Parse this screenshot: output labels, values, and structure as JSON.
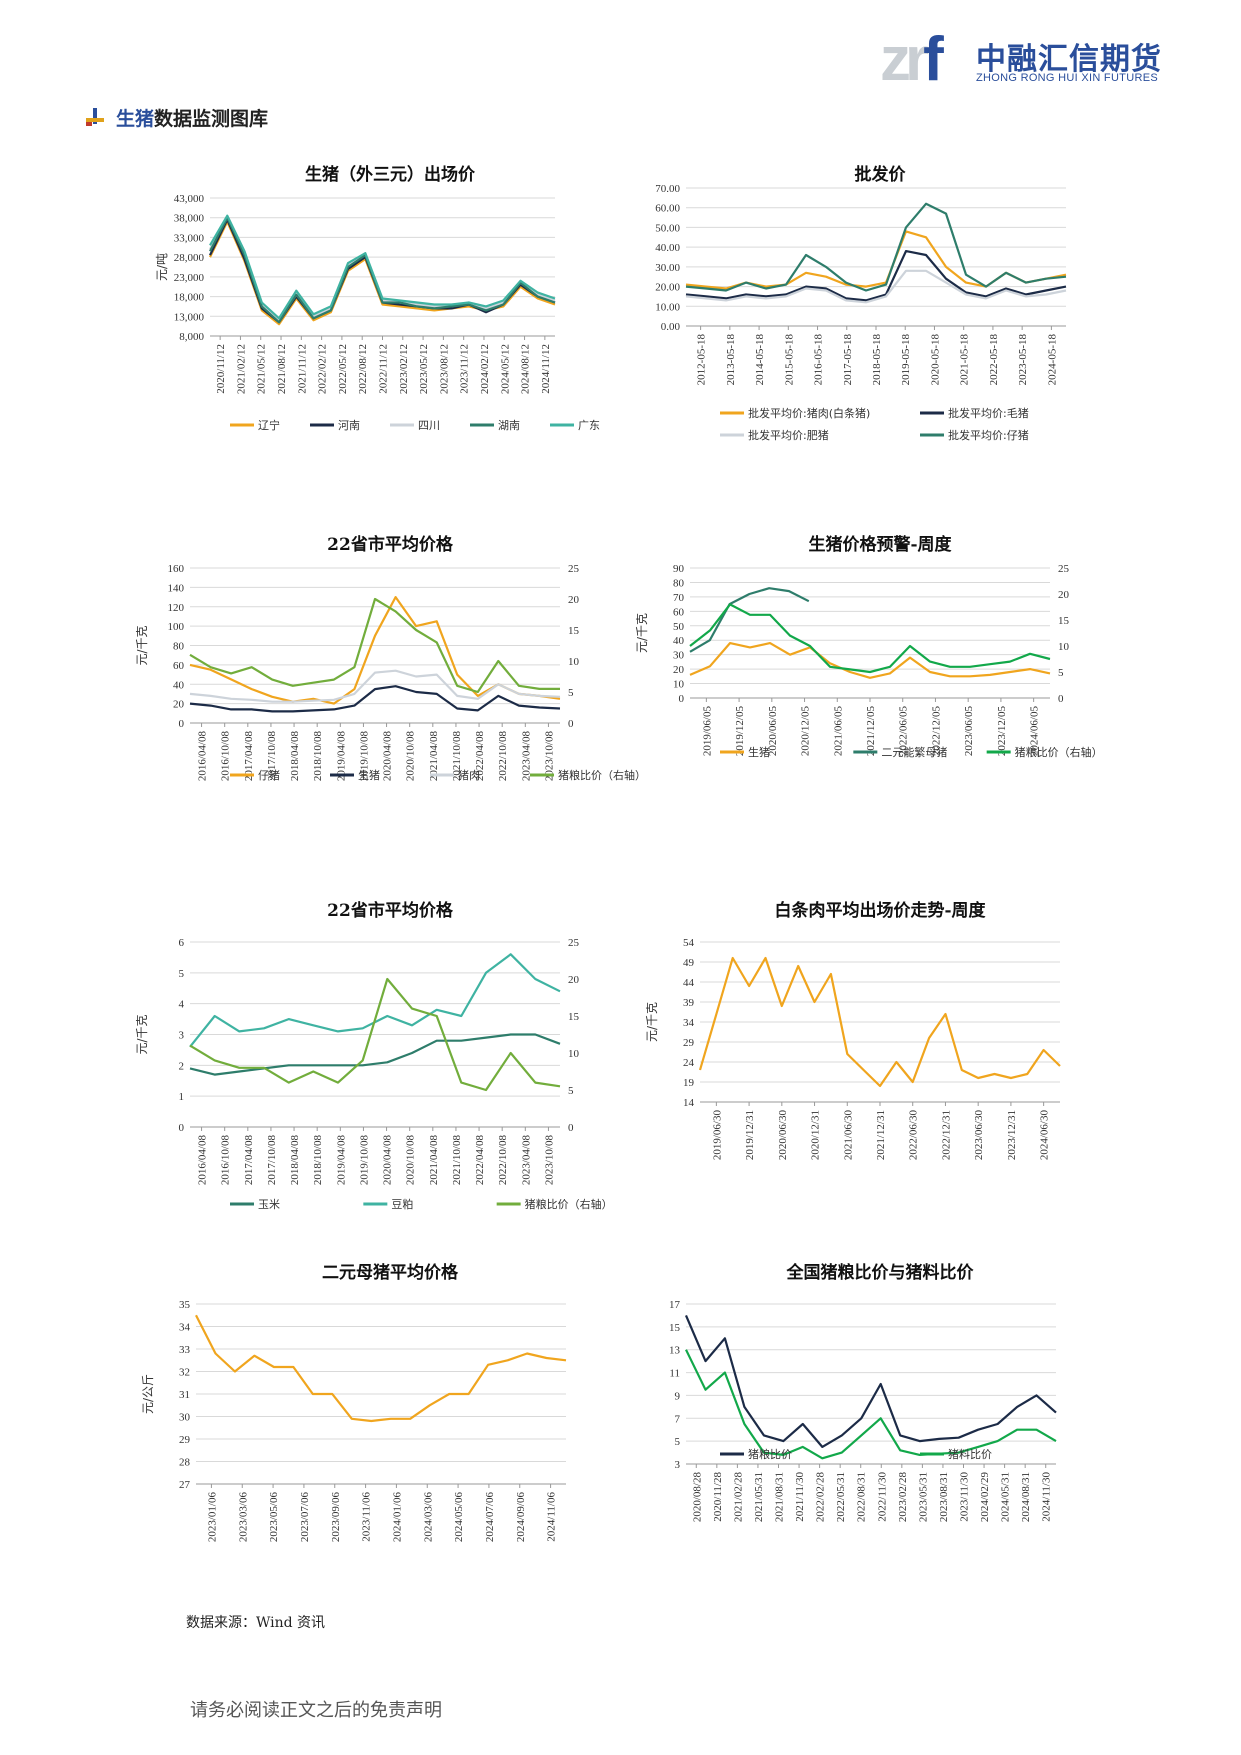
{
  "header": {
    "logo_mark": "zrf",
    "company_cn": "中融汇信期货",
    "company_en": "ZHONG RONG HUI XIN FUTURES",
    "brand_color": "#2a4e9b"
  },
  "section": {
    "title_prefix": "生猪",
    "title_rest": "数据监测图库"
  },
  "colors": {
    "orange": "#f0a51e",
    "navy": "#1c2b47",
    "lightgray": "#cdd3da",
    "teal": "#2e7d6b",
    "aqua": "#3fb3a2",
    "green": "#72ad3c",
    "brightgreen": "#12a84a"
  },
  "charts": [
    {
      "id": "c1",
      "title": "生猪（外三元）出场价",
      "ylabel": "元/吨",
      "yticks": [
        "8,000",
        "13,000",
        "18,000",
        "23,000",
        "28,000",
        "33,000",
        "38,000",
        "43,000"
      ],
      "xticks": [
        "2020/11/12",
        "2021/02/12",
        "2021/05/12",
        "2021/08/12",
        "2021/11/12",
        "2022/02/12",
        "2022/05/12",
        "2022/08/12",
        "2022/11/12",
        "2023/02/12",
        "2023/05/12",
        "2023/08/12",
        "2023/11/12",
        "2024/02/12",
        "2024/05/12",
        "2024/08/12",
        "2024/11/12"
      ],
      "legend": [
        "辽宁",
        "河南",
        "四川",
        "湖南",
        "广东"
      ]
    },
    {
      "id": "c2",
      "title": "批发价",
      "yticks": [
        "0.00",
        "10.00",
        "20.00",
        "30.00",
        "40.00",
        "50.00",
        "60.00",
        "70.00"
      ],
      "xticks": [
        "2012-05-18",
        "2013-05-18",
        "2014-05-18",
        "2015-05-18",
        "2016-05-18",
        "2017-05-18",
        "2018-05-18",
        "2019-05-18",
        "2020-05-18",
        "2021-05-18",
        "2022-05-18",
        "2023-05-18",
        "2024-05-18"
      ],
      "legend": [
        "批发平均价:猪肉(白条猪)",
        "批发平均价:毛猪",
        "批发平均价:肥猪",
        "批发平均价:仔猪"
      ]
    },
    {
      "id": "c3",
      "title": "22省市平均价格",
      "ylabel": "元/千克",
      "yticks": [
        "0",
        "20",
        "40",
        "60",
        "80",
        "100",
        "120",
        "140",
        "160"
      ],
      "y2ticks": [
        "0",
        "5",
        "10",
        "15",
        "20",
        "25"
      ],
      "xticks": [
        "2016/04/08",
        "2016/10/08",
        "2017/04/08",
        "2017/10/08",
        "2018/04/08",
        "2018/10/08",
        "2019/04/08",
        "2019/10/08",
        "2020/04/08",
        "2020/10/08",
        "2021/04/08",
        "2021/10/08",
        "2022/04/08",
        "2022/10/08",
        "2023/04/08",
        "2023/10/08"
      ],
      "legend": [
        "仔猪",
        "生猪",
        "猪肉",
        "猪粮比价（右轴）"
      ]
    },
    {
      "id": "c4",
      "title": "生猪价格预警-周度",
      "ylabel": "元/千克",
      "yticks": [
        "0",
        "10",
        "20",
        "30",
        "40",
        "50",
        "60",
        "70",
        "80",
        "90"
      ],
      "y2ticks": [
        "0",
        "5",
        "10",
        "15",
        "20",
        "25"
      ],
      "xticks": [
        "2019/06/05",
        "2019/12/05",
        "2020/06/05",
        "2020/12/05",
        "2021/06/05",
        "2021/12/05",
        "2022/06/05",
        "2022/12/05",
        "2023/06/05",
        "2023/12/05",
        "2024/06/05"
      ],
      "legend": [
        "生猪",
        "二元能繁母猪",
        "猪粮比价（右轴）"
      ]
    },
    {
      "id": "c5",
      "title": "22省市平均价格",
      "ylabel": "元/千克",
      "yticks": [
        "0",
        "1",
        "2",
        "3",
        "4",
        "5",
        "6"
      ],
      "y2ticks": [
        "0",
        "5",
        "10",
        "15",
        "20",
        "25"
      ],
      "xticks": [
        "2016/04/08",
        "2016/10/08",
        "2017/04/08",
        "2017/10/08",
        "2018/04/08",
        "2018/10/08",
        "2019/04/08",
        "2019/10/08",
        "2020/04/08",
        "2020/10/08",
        "2021/04/08",
        "2021/10/08",
        "2022/04/08",
        "2022/10/08",
        "2023/04/08",
        "2023/10/08"
      ],
      "legend": [
        "玉米",
        "豆粕",
        "猪粮比价（右轴）"
      ]
    },
    {
      "id": "c6",
      "title": "白条肉平均出场价走势-周度",
      "ylabel": "元/千克",
      "yticks": [
        "14",
        "19",
        "24",
        "29",
        "34",
        "39",
        "44",
        "49",
        "54"
      ],
      "xticks": [
        "2019/06/30",
        "2019/12/31",
        "2020/06/30",
        "2020/12/31",
        "2021/06/30",
        "2021/12/31",
        "2022/06/30",
        "2022/12/31",
        "2023/06/30",
        "2023/12/31",
        "2024/06/30"
      ],
      "legend": []
    },
    {
      "id": "c7",
      "title": "二元母猪平均价格",
      "ylabel": "元/公斤",
      "yticks": [
        "27",
        "28",
        "29",
        "30",
        "31",
        "32",
        "33",
        "34",
        "35"
      ],
      "xticks": [
        "2023/01/06",
        "2023/03/06",
        "2023/05/06",
        "2023/07/06",
        "2023/09/06",
        "2023/11/06",
        "2024/01/06",
        "2024/03/06",
        "2024/05/06",
        "2024/07/06",
        "2024/09/06",
        "2024/11/06"
      ],
      "legend": []
    },
    {
      "id": "c8",
      "title": "全国猪粮比价与猪料比价",
      "yticks": [
        "3",
        "5",
        "7",
        "9",
        "11",
        "13",
        "15",
        "17"
      ],
      "xticks": [
        "2020/08/28",
        "2020/11/28",
        "2021/02/28",
        "2021/05/31",
        "2021/08/31",
        "2021/11/30",
        "2022/02/28",
        "2022/05/31",
        "2022/08/31",
        "2022/11/30",
        "2023/02/28",
        "2023/05/31",
        "2023/08/31",
        "2023/11/30",
        "2024/02/29",
        "2024/05/31",
        "2024/08/31",
        "2024/11/30"
      ],
      "legend": [
        "猪粮比价",
        "猪料比价"
      ]
    }
  ],
  "chart_data": [
    {
      "type": "line",
      "title": "生猪（外三元）出场价",
      "ylabel": "元/吨",
      "ylim": [
        8000,
        43000
      ],
      "series": [
        {
          "name": "辽宁",
          "values": [
            28000,
            37000,
            27000,
            14500,
            11000,
            17500,
            12000,
            14000,
            24500,
            27500,
            16000,
            15500,
            15000,
            14500,
            15000,
            15500,
            14500,
            15500,
            20500,
            17500,
            16000
          ]
        },
        {
          "name": "河南",
          "values": [
            28500,
            37500,
            27500,
            15000,
            11500,
            18000,
            12500,
            14500,
            25000,
            28000,
            16500,
            16000,
            15500,
            15000,
            15000,
            16000,
            14000,
            16000,
            21000,
            18000,
            16500
          ]
        },
        {
          "name": "四川",
          "values": [
            30000,
            38000,
            29000,
            16000,
            12000,
            18500,
            13000,
            15000,
            26000,
            29000,
            17000,
            16500,
            16000,
            15500,
            15500,
            16500,
            15000,
            16500,
            21500,
            18500,
            17000
          ]
        },
        {
          "name": "湖南",
          "values": [
            29500,
            38000,
            28500,
            15500,
            11500,
            18500,
            12500,
            14500,
            25500,
            28500,
            16500,
            16500,
            15500,
            15000,
            15500,
            16000,
            14500,
            16000,
            21500,
            18000,
            16500
          ]
        },
        {
          "name": "广东",
          "values": [
            31000,
            38500,
            29500,
            16500,
            12500,
            19500,
            13500,
            15500,
            26500,
            29000,
            17500,
            17000,
            16500,
            16000,
            16000,
            16500,
            15500,
            17000,
            22000,
            19000,
            17500
          ]
        }
      ]
    },
    {
      "type": "line",
      "title": "批发价",
      "ylim": [
        0,
        70
      ],
      "series": [
        {
          "name": "批发平均价:猪肉(白条猪)",
          "values": [
            21,
            20,
            19,
            22,
            20,
            21,
            27,
            25,
            21,
            20,
            22,
            48,
            45,
            30,
            22,
            20,
            27,
            22,
            24,
            26
          ]
        },
        {
          "name": "批发平均价:毛猪",
          "values": [
            16,
            15,
            14,
            16,
            15,
            16,
            20,
            19,
            14,
            13,
            16,
            38,
            36,
            24,
            17,
            15,
            19,
            16,
            18,
            20
          ]
        },
        {
          "name": "批发平均价:肥猪",
          "values": [
            15,
            14,
            13,
            15,
            14,
            15,
            19,
            18,
            13,
            12,
            15,
            28,
            28,
            22,
            16,
            14,
            18,
            15,
            16,
            18
          ]
        },
        {
          "name": "批发平均价:仔猪",
          "values": [
            20,
            19,
            18,
            22,
            19,
            21,
            36,
            30,
            22,
            18,
            21,
            50,
            62,
            57,
            26,
            20,
            27,
            22,
            24,
            25
          ]
        }
      ]
    },
    {
      "type": "line",
      "title": "22省市平均价格",
      "ylabel": "元/千克",
      "ylim": [
        0,
        160
      ],
      "y2lim": [
        0,
        25
      ],
      "series": [
        {
          "name": "仔猪",
          "values": [
            60,
            55,
            45,
            35,
            27,
            22,
            25,
            20,
            35,
            90,
            130,
            100,
            105,
            50,
            28,
            40,
            30,
            28,
            25
          ]
        },
        {
          "name": "生猪",
          "values": [
            20,
            18,
            14,
            14,
            12,
            12,
            13,
            14,
            18,
            35,
            38,
            32,
            30,
            15,
            13,
            28,
            18,
            16,
            15
          ]
        },
        {
          "name": "猪肉",
          "values": [
            30,
            28,
            25,
            24,
            22,
            22,
            23,
            24,
            30,
            52,
            54,
            48,
            50,
            28,
            25,
            40,
            30,
            28,
            27
          ]
        },
        {
          "name": "猪粮比价（右轴）",
          "values": [
            11,
            9,
            8,
            9,
            7,
            6,
            6.5,
            7,
            9,
            20,
            18,
            15,
            13,
            6,
            5,
            10,
            6,
            5.5,
            5.5
          ]
        }
      ]
    },
    {
      "type": "line",
      "title": "生猪价格预警-周度",
      "ylabel": "元/千克",
      "ylim": [
        0,
        90
      ],
      "y2lim": [
        0,
        25
      ],
      "series": [
        {
          "name": "生猪",
          "values": [
            16,
            22,
            38,
            35,
            38,
            30,
            35,
            24,
            18,
            14,
            17,
            28,
            18,
            15,
            15,
            16,
            18,
            20,
            17
          ]
        },
        {
          "name": "二元能繁母猪",
          "values": [
            32,
            40,
            65,
            72,
            76,
            74,
            67
          ]
        },
        {
          "name": "猪粮比价（右轴）",
          "values": [
            10,
            13,
            18,
            16,
            16,
            12,
            10,
            6,
            5.5,
            5,
            6,
            10,
            7,
            6,
            6,
            6.5,
            7,
            8.5,
            7.5
          ]
        }
      ]
    },
    {
      "type": "line",
      "title": "22省市平均价格",
      "ylabel": "元/千克",
      "ylim": [
        0,
        6
      ],
      "y2lim": [
        0,
        25
      ],
      "series": [
        {
          "name": "玉米",
          "values": [
            1.9,
            1.7,
            1.8,
            1.9,
            2.0,
            2.0,
            2.0,
            2.0,
            2.1,
            2.4,
            2.8,
            2.8,
            2.9,
            3.0,
            3.0,
            2.7
          ]
        },
        {
          "name": "豆粕",
          "values": [
            2.6,
            3.6,
            3.1,
            3.2,
            3.5,
            3.3,
            3.1,
            3.2,
            3.6,
            3.3,
            3.8,
            3.6,
            5.0,
            5.6,
            4.8,
            4.4
          ]
        },
        {
          "name": "猪粮比价（右轴）",
          "values": [
            11,
            9,
            8,
            8,
            6,
            7.5,
            6,
            9,
            20,
            16,
            15,
            6,
            5,
            10,
            6,
            5.5
          ]
        }
      ]
    },
    {
      "type": "line",
      "title": "白条肉平均出场价走势-周度",
      "ylabel": "元/千克",
      "ylim": [
        14,
        54
      ],
      "series": [
        {
          "name": "",
          "values": [
            22,
            36,
            50,
            43,
            50,
            38,
            48,
            39,
            46,
            26,
            22,
            18,
            24,
            19,
            30,
            36,
            22,
            20,
            21,
            20,
            21,
            27,
            23
          ]
        }
      ]
    },
    {
      "type": "line",
      "title": "二元母猪平均价格",
      "ylabel": "元/公斤",
      "ylim": [
        27,
        35
      ],
      "series": [
        {
          "name": "",
          "values": [
            34.5,
            32.8,
            32.0,
            32.7,
            32.2,
            32.2,
            31.0,
            31.0,
            29.9,
            29.8,
            29.9,
            29.9,
            30.5,
            31.0,
            31.0,
            32.3,
            32.5,
            32.8,
            32.6,
            32.5
          ]
        }
      ]
    },
    {
      "type": "line",
      "title": "全国猪粮比价与猪料比价",
      "ylim": [
        3,
        17
      ],
      "series": [
        {
          "name": "猪粮比价",
          "values": [
            16,
            12,
            14,
            8,
            5.5,
            5,
            6.5,
            4.5,
            5.5,
            7,
            10,
            5.5,
            5,
            5.2,
            5.3,
            6,
            6.5,
            8,
            9,
            7.5
          ]
        },
        {
          "name": "猪料比价",
          "values": [
            13,
            9.5,
            11,
            6.5,
            4,
            3.8,
            4.5,
            3.5,
            4,
            5.5,
            7,
            4.2,
            3.8,
            3.9,
            4,
            4.5,
            5,
            6,
            6,
            5
          ]
        }
      ]
    }
  ],
  "source": "数据来源：Wind 资讯",
  "footer": "请务必阅读正文之后的免责声明"
}
